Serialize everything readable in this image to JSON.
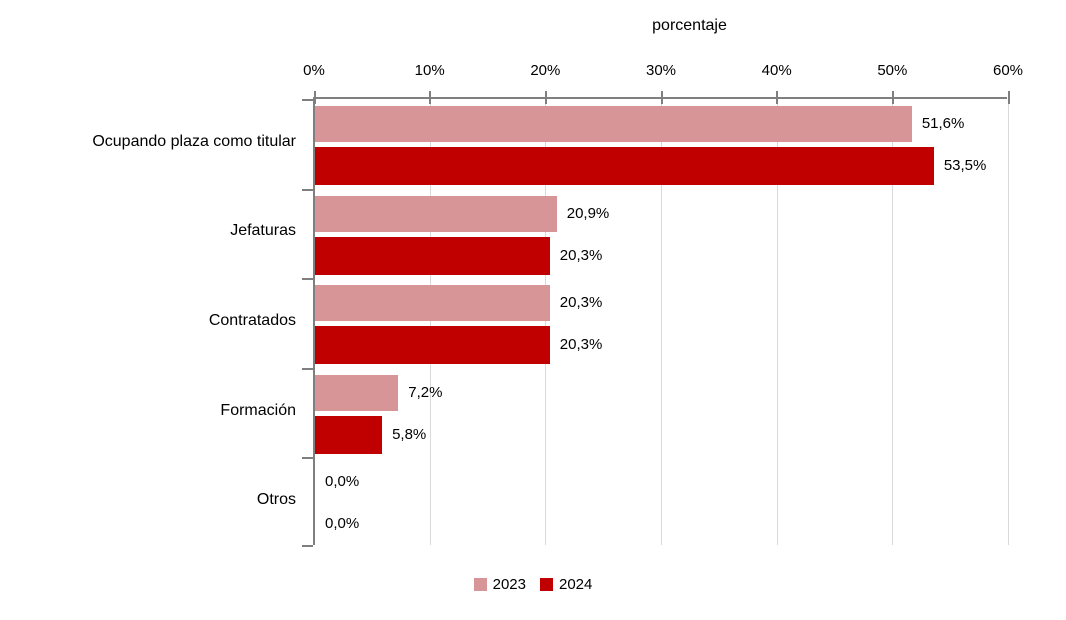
{
  "chart_data": {
    "type": "bar",
    "orientation": "horizontal",
    "title": "porcentaje",
    "categories": [
      "Ocupando plaza como titular",
      "Jefaturas",
      "Contratados",
      "Formación",
      "Otros"
    ],
    "series": [
      {
        "name": "2023",
        "color": "#D89598",
        "values": [
          51.6,
          20.9,
          20.3,
          7.2,
          0.0
        ],
        "labels": [
          "51,6%",
          "20,9%",
          "20,3%",
          "7,2%",
          "0,0%"
        ]
      },
      {
        "name": "2024",
        "color": "#C00000",
        "values": [
          53.5,
          20.3,
          20.3,
          5.8,
          0.0
        ],
        "labels": [
          "53,5%",
          "20,3%",
          "20,3%",
          "5,8%",
          "0,0%"
        ]
      }
    ],
    "x_axis": {
      "position": "top",
      "min": 0,
      "max": 60,
      "tick_step": 10,
      "tick_labels": [
        "0%",
        "10%",
        "20%",
        "30%",
        "40%",
        "50%",
        "60%"
      ]
    },
    "gridlines": true,
    "legend_position": "bottom",
    "colors": {
      "axis": "#7F7F7F",
      "gridline": "#D9D9D9",
      "text": "#000000",
      "background": "#FFFFFF"
    }
  }
}
